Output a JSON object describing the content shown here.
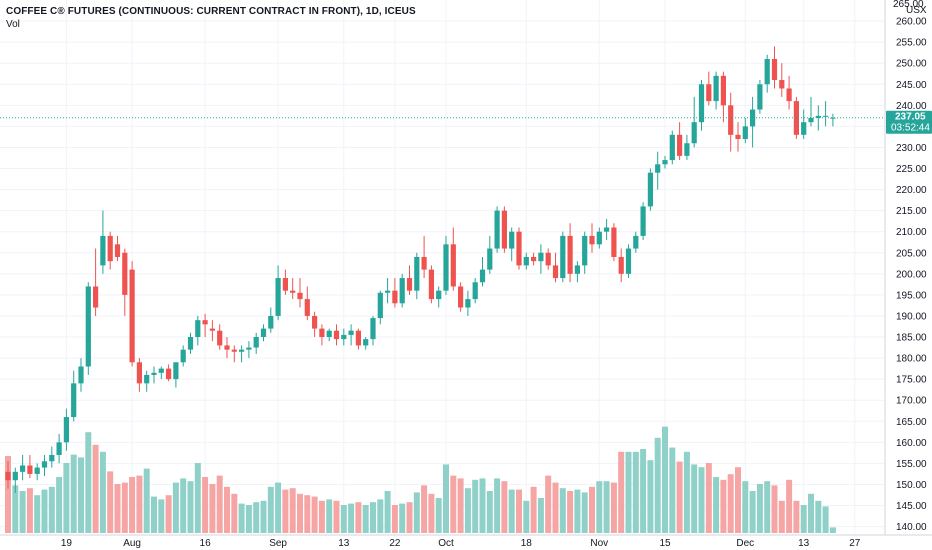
{
  "legend": {
    "title": "COFFEE C® FUTURES (CONTINUOUS: CURRENT CONTRACT IN FRONT), 1D, ICEUS",
    "vol_label": "Vol"
  },
  "price_axis": {
    "unit": "USX",
    "top_label": "265.00"
  },
  "current_price": {
    "value": "237.05",
    "countdown": "03:52:44"
  },
  "colors": {
    "up": "#26a69a",
    "down": "#ef5350",
    "vol_up": "#8fd1c8",
    "vol_down": "#f5a5a3",
    "price_tag": "#26a69a",
    "grid": "#f0f3fa"
  },
  "chart_data": {
    "type": "candlestick",
    "ylim": [
      138,
      265
    ],
    "y_ticks": [
      "140.00",
      "145.00",
      "150.00",
      "155.00",
      "160.00",
      "165.00",
      "170.00",
      "175.00",
      "180.00",
      "185.00",
      "190.00",
      "195.00",
      "200.00",
      "205.00",
      "210.00",
      "215.00",
      "220.00",
      "225.00",
      "230.00",
      "235.00",
      "240.00",
      "245.00",
      "250.00",
      "255.00",
      "260.00"
    ],
    "x_ticks": [
      {
        "label": "19",
        "i": 8
      },
      {
        "label": "Aug",
        "i": 17
      },
      {
        "label": "16",
        "i": 27
      },
      {
        "label": "Sep",
        "i": 37
      },
      {
        "label": "13",
        "i": 46
      },
      {
        "label": "22",
        "i": 53
      },
      {
        "label": "Oct",
        "i": 60
      },
      {
        "label": "18",
        "i": 71
      },
      {
        "label": "Nov",
        "i": 81
      },
      {
        "label": "15",
        "i": 90
      },
      {
        "label": "Dec",
        "i": 101
      },
      {
        "label": "13",
        "i": 109
      },
      {
        "label": "27",
        "i": 116
      }
    ],
    "candles": [
      {
        "o": 153.0,
        "h": 155.5,
        "l": 149.0,
        "c": 151.0,
        "v": 0.55
      },
      {
        "o": 151.0,
        "h": 154.0,
        "l": 148.0,
        "c": 153.0,
        "v": 0.34
      },
      {
        "o": 153.0,
        "h": 157.0,
        "l": 151.0,
        "c": 154.5,
        "v": 0.3
      },
      {
        "o": 154.5,
        "h": 157.0,
        "l": 151.5,
        "c": 152.5,
        "v": 0.32
      },
      {
        "o": 152.5,
        "h": 155.0,
        "l": 151.0,
        "c": 154.0,
        "v": 0.27
      },
      {
        "o": 154.0,
        "h": 157.0,
        "l": 152.0,
        "c": 155.5,
        "v": 0.31
      },
      {
        "o": 155.5,
        "h": 159.0,
        "l": 154.0,
        "c": 157.0,
        "v": 0.33
      },
      {
        "o": 157.0,
        "h": 162.0,
        "l": 155.0,
        "c": 160.0,
        "v": 0.4
      },
      {
        "o": 160.0,
        "h": 168.0,
        "l": 158.0,
        "c": 166.0,
        "v": 0.5
      },
      {
        "o": 166.0,
        "h": 177.0,
        "l": 165.0,
        "c": 174.0,
        "v": 0.56
      },
      {
        "o": 174.0,
        "h": 180.0,
        "l": 172.0,
        "c": 178.0,
        "v": 0.54
      },
      {
        "o": 178.0,
        "h": 198.0,
        "l": 176.0,
        "c": 197.0,
        "v": 0.72
      },
      {
        "o": 197.0,
        "h": 206.0,
        "l": 190.0,
        "c": 192.0,
        "v": 0.63
      },
      {
        "o": 202.0,
        "h": 215.0,
        "l": 200.0,
        "c": 209.0,
        "v": 0.58
      },
      {
        "o": 209.0,
        "h": 210.0,
        "l": 201.0,
        "c": 203.0,
        "v": 0.44
      },
      {
        "o": 207.0,
        "h": 209.0,
        "l": 203.0,
        "c": 204.0,
        "v": 0.35
      },
      {
        "o": 205.0,
        "h": 206.0,
        "l": 190.0,
        "c": 195.0,
        "v": 0.36
      },
      {
        "o": 201.0,
        "h": 203.0,
        "l": 178.0,
        "c": 179.0,
        "v": 0.4
      },
      {
        "o": 179.0,
        "h": 180.0,
        "l": 172.0,
        "c": 174.0,
        "v": 0.41
      },
      {
        "o": 174.0,
        "h": 177.0,
        "l": 172.0,
        "c": 176.0,
        "v": 0.46
      },
      {
        "o": 176.0,
        "h": 178.0,
        "l": 174.0,
        "c": 176.5,
        "v": 0.26
      },
      {
        "o": 176.5,
        "h": 178.0,
        "l": 175.0,
        "c": 177.5,
        "v": 0.24
      },
      {
        "o": 177.5,
        "h": 178.5,
        "l": 174.5,
        "c": 175.0,
        "v": 0.27
      },
      {
        "o": 175.0,
        "h": 179.0,
        "l": 173.0,
        "c": 179.0,
        "v": 0.36
      },
      {
        "o": 179.0,
        "h": 183.0,
        "l": 178.0,
        "c": 182.0,
        "v": 0.39
      },
      {
        "o": 182.0,
        "h": 186.0,
        "l": 181.0,
        "c": 185.0,
        "v": 0.37
      },
      {
        "o": 185.0,
        "h": 190.0,
        "l": 183.0,
        "c": 189.0,
        "v": 0.5
      },
      {
        "o": 189.0,
        "h": 190.5,
        "l": 185.0,
        "c": 188.0,
        "v": 0.4
      },
      {
        "o": 187.0,
        "h": 189.0,
        "l": 184.0,
        "c": 186.5,
        "v": 0.35
      },
      {
        "o": 186.5,
        "h": 188.0,
        "l": 182.0,
        "c": 183.0,
        "v": 0.41
      },
      {
        "o": 183.0,
        "h": 185.0,
        "l": 180.0,
        "c": 182.0,
        "v": 0.33
      },
      {
        "o": 182.0,
        "h": 183.0,
        "l": 179.0,
        "c": 181.5,
        "v": 0.28
      },
      {
        "o": 181.5,
        "h": 183.0,
        "l": 179.0,
        "c": 182.0,
        "v": 0.21
      },
      {
        "o": 182.0,
        "h": 184.0,
        "l": 180.0,
        "c": 182.5,
        "v": 0.2
      },
      {
        "o": 182.5,
        "h": 186.0,
        "l": 181.0,
        "c": 185.0,
        "v": 0.22
      },
      {
        "o": 185.0,
        "h": 188.0,
        "l": 184.0,
        "c": 187.0,
        "v": 0.23
      },
      {
        "o": 187.0,
        "h": 192.0,
        "l": 186.0,
        "c": 190.0,
        "v": 0.33
      },
      {
        "o": 190.0,
        "h": 202.0,
        "l": 189.0,
        "c": 199.0,
        "v": 0.36
      },
      {
        "o": 199.0,
        "h": 201.0,
        "l": 195.0,
        "c": 196.0,
        "v": 0.31
      },
      {
        "o": 196.0,
        "h": 199.0,
        "l": 194.0,
        "c": 195.5,
        "v": 0.32
      },
      {
        "o": 195.5,
        "h": 199.0,
        "l": 192.0,
        "c": 194.0,
        "v": 0.28
      },
      {
        "o": 194.0,
        "h": 197.0,
        "l": 189.0,
        "c": 190.0,
        "v": 0.27
      },
      {
        "o": 190.0,
        "h": 191.0,
        "l": 185.0,
        "c": 187.0,
        "v": 0.26
      },
      {
        "o": 187.0,
        "h": 188.0,
        "l": 183.0,
        "c": 185.0,
        "v": 0.23
      },
      {
        "o": 185.0,
        "h": 187.0,
        "l": 184.0,
        "c": 186.5,
        "v": 0.24
      },
      {
        "o": 186.5,
        "h": 188.0,
        "l": 183.0,
        "c": 184.5,
        "v": 0.23
      },
      {
        "o": 184.5,
        "h": 187.0,
        "l": 183.0,
        "c": 185.5,
        "v": 0.2
      },
      {
        "o": 185.5,
        "h": 188.0,
        "l": 183.0,
        "c": 186.5,
        "v": 0.21
      },
      {
        "o": 186.5,
        "h": 187.0,
        "l": 182.0,
        "c": 183.0,
        "v": 0.22
      },
      {
        "o": 183.0,
        "h": 185.0,
        "l": 182.0,
        "c": 184.5,
        "v": 0.2
      },
      {
        "o": 184.5,
        "h": 190.0,
        "l": 183.0,
        "c": 189.5,
        "v": 0.22
      },
      {
        "o": 189.5,
        "h": 196.0,
        "l": 188.0,
        "c": 195.5,
        "v": 0.24
      },
      {
        "o": 195.5,
        "h": 199.0,
        "l": 193.0,
        "c": 196.0,
        "v": 0.3
      },
      {
        "o": 196.0,
        "h": 199.0,
        "l": 192.0,
        "c": 193.0,
        "v": 0.2
      },
      {
        "o": 193.0,
        "h": 200.0,
        "l": 192.0,
        "c": 199.0,
        "v": 0.21
      },
      {
        "o": 199.0,
        "h": 202.0,
        "l": 195.0,
        "c": 196.0,
        "v": 0.22
      },
      {
        "o": 196.0,
        "h": 205.0,
        "l": 194.0,
        "c": 204.0,
        "v": 0.29
      },
      {
        "o": 204.0,
        "h": 209.0,
        "l": 199.0,
        "c": 201.0,
        "v": 0.34
      },
      {
        "o": 201.0,
        "h": 202.0,
        "l": 193.0,
        "c": 194.0,
        "v": 0.28
      },
      {
        "o": 194.0,
        "h": 197.0,
        "l": 192.0,
        "c": 196.0,
        "v": 0.25
      },
      {
        "o": 196.0,
        "h": 209.0,
        "l": 195.0,
        "c": 207.0,
        "v": 0.49
      },
      {
        "o": 207.0,
        "h": 211.0,
        "l": 196.0,
        "c": 197.0,
        "v": 0.41
      },
      {
        "o": 197.0,
        "h": 198.0,
        "l": 191.0,
        "c": 192.0,
        "v": 0.39
      },
      {
        "o": 192.0,
        "h": 196.0,
        "l": 190.0,
        "c": 194.0,
        "v": 0.32
      },
      {
        "o": 194.0,
        "h": 199.0,
        "l": 193.0,
        "c": 198.0,
        "v": 0.38
      },
      {
        "o": 198.0,
        "h": 204.0,
        "l": 197.0,
        "c": 201.0,
        "v": 0.39
      },
      {
        "o": 201.0,
        "h": 209.0,
        "l": 200.0,
        "c": 206.0,
        "v": 0.3
      },
      {
        "o": 206.0,
        "h": 216.0,
        "l": 205.0,
        "c": 215.0,
        "v": 0.39
      },
      {
        "o": 215.0,
        "h": 216.0,
        "l": 205.0,
        "c": 206.0,
        "v": 0.37
      },
      {
        "o": 206.0,
        "h": 211.0,
        "l": 203.0,
        "c": 210.0,
        "v": 0.31
      },
      {
        "o": 210.0,
        "h": 211.0,
        "l": 201.0,
        "c": 202.0,
        "v": 0.31
      },
      {
        "o": 202.0,
        "h": 205.0,
        "l": 201.0,
        "c": 204.0,
        "v": 0.23
      },
      {
        "o": 204.0,
        "h": 205.0,
        "l": 202.0,
        "c": 203.0,
        "v": 0.33
      },
      {
        "o": 203.0,
        "h": 207.0,
        "l": 200.0,
        "c": 205.0,
        "v": 0.25
      },
      {
        "o": 205.0,
        "h": 206.0,
        "l": 201.0,
        "c": 202.0,
        "v": 0.41
      },
      {
        "o": 202.0,
        "h": 205.0,
        "l": 198.0,
        "c": 199.0,
        "v": 0.36
      },
      {
        "o": 199.0,
        "h": 210.0,
        "l": 198.0,
        "c": 209.0,
        "v": 0.32
      },
      {
        "o": 209.0,
        "h": 212.0,
        "l": 198.0,
        "c": 200.0,
        "v": 0.3
      },
      {
        "o": 200.0,
        "h": 203.0,
        "l": 198.0,
        "c": 202.0,
        "v": 0.31
      },
      {
        "o": 202.0,
        "h": 210.0,
        "l": 200.0,
        "c": 209.0,
        "v": 0.29
      },
      {
        "o": 209.0,
        "h": 212.0,
        "l": 205.0,
        "c": 207.0,
        "v": 0.33
      },
      {
        "o": 207.0,
        "h": 211.0,
        "l": 206.0,
        "c": 210.0,
        "v": 0.37
      },
      {
        "o": 210.0,
        "h": 213.0,
        "l": 208.0,
        "c": 211.0,
        "v": 0.37
      },
      {
        "o": 211.0,
        "h": 212.0,
        "l": 203.0,
        "c": 204.0,
        "v": 0.36
      },
      {
        "o": 204.0,
        "h": 206.0,
        "l": 198.0,
        "c": 200.0,
        "v": 0.58
      },
      {
        "o": 200.0,
        "h": 207.0,
        "l": 199.0,
        "c": 206.0,
        "v": 0.58
      },
      {
        "o": 206.0,
        "h": 210.0,
        "l": 205.0,
        "c": 209.0,
        "v": 0.58
      },
      {
        "o": 209.0,
        "h": 217.0,
        "l": 208.0,
        "c": 216.0,
        "v": 0.6
      },
      {
        "o": 216.0,
        "h": 225.0,
        "l": 215.0,
        "c": 224.0,
        "v": 0.52
      },
      {
        "o": 224.0,
        "h": 229.0,
        "l": 220.0,
        "c": 226.0,
        "v": 0.68
      },
      {
        "o": 226.0,
        "h": 228.0,
        "l": 225.0,
        "c": 227.0,
        "v": 0.76
      },
      {
        "o": 227.0,
        "h": 234.0,
        "l": 226.0,
        "c": 233.0,
        "v": 0.61
      },
      {
        "o": 233.0,
        "h": 236.0,
        "l": 227.0,
        "c": 228.0,
        "v": 0.51
      },
      {
        "o": 228.0,
        "h": 233.0,
        "l": 227.0,
        "c": 231.0,
        "v": 0.58
      },
      {
        "o": 231.0,
        "h": 242.0,
        "l": 230.0,
        "c": 236.0,
        "v": 0.49
      },
      {
        "o": 236.0,
        "h": 246.0,
        "l": 234.0,
        "c": 245.0,
        "v": 0.47
      },
      {
        "o": 245.0,
        "h": 248.0,
        "l": 240.0,
        "c": 241.0,
        "v": 0.5
      },
      {
        "o": 241.0,
        "h": 248.0,
        "l": 239.0,
        "c": 247.0,
        "v": 0.4
      },
      {
        "o": 247.0,
        "h": 248.0,
        "l": 236.0,
        "c": 240.0,
        "v": 0.38
      },
      {
        "o": 240.0,
        "h": 243.0,
        "l": 229.0,
        "c": 233.0,
        "v": 0.42
      },
      {
        "o": 233.0,
        "h": 236.0,
        "l": 229.0,
        "c": 232.0,
        "v": 0.47
      },
      {
        "o": 232.0,
        "h": 237.0,
        "l": 231.0,
        "c": 235.0,
        "v": 0.37
      },
      {
        "o": 235.0,
        "h": 242.0,
        "l": 230.0,
        "c": 239.0,
        "v": 0.3
      },
      {
        "o": 239.0,
        "h": 246.0,
        "l": 238.0,
        "c": 245.0,
        "v": 0.35
      },
      {
        "o": 245.0,
        "h": 252.0,
        "l": 243.0,
        "c": 251.0,
        "v": 0.37
      },
      {
        "o": 251.0,
        "h": 254.0,
        "l": 244.0,
        "c": 246.0,
        "v": 0.34
      },
      {
        "o": 246.0,
        "h": 250.0,
        "l": 242.0,
        "c": 244.0,
        "v": 0.23
      },
      {
        "o": 244.0,
        "h": 247.0,
        "l": 239.0,
        "c": 241.0,
        "v": 0.38
      },
      {
        "o": 241.0,
        "h": 242.0,
        "l": 232.0,
        "c": 233.0,
        "v": 0.23
      },
      {
        "o": 233.0,
        "h": 239.0,
        "l": 232.0,
        "c": 236.0,
        "v": 0.2
      },
      {
        "o": 236.0,
        "h": 242.0,
        "l": 235.0,
        "c": 237.0,
        "v": 0.28
      },
      {
        "o": 237.0,
        "h": 240.0,
        "l": 234.0,
        "c": 237.5,
        "v": 0.23
      },
      {
        "o": 237.5,
        "h": 241.0,
        "l": 235.0,
        "c": 237.5,
        "v": 0.19
      },
      {
        "o": 237.05,
        "h": 238.0,
        "l": 235.0,
        "c": 237.05,
        "v": 0.04
      }
    ]
  }
}
